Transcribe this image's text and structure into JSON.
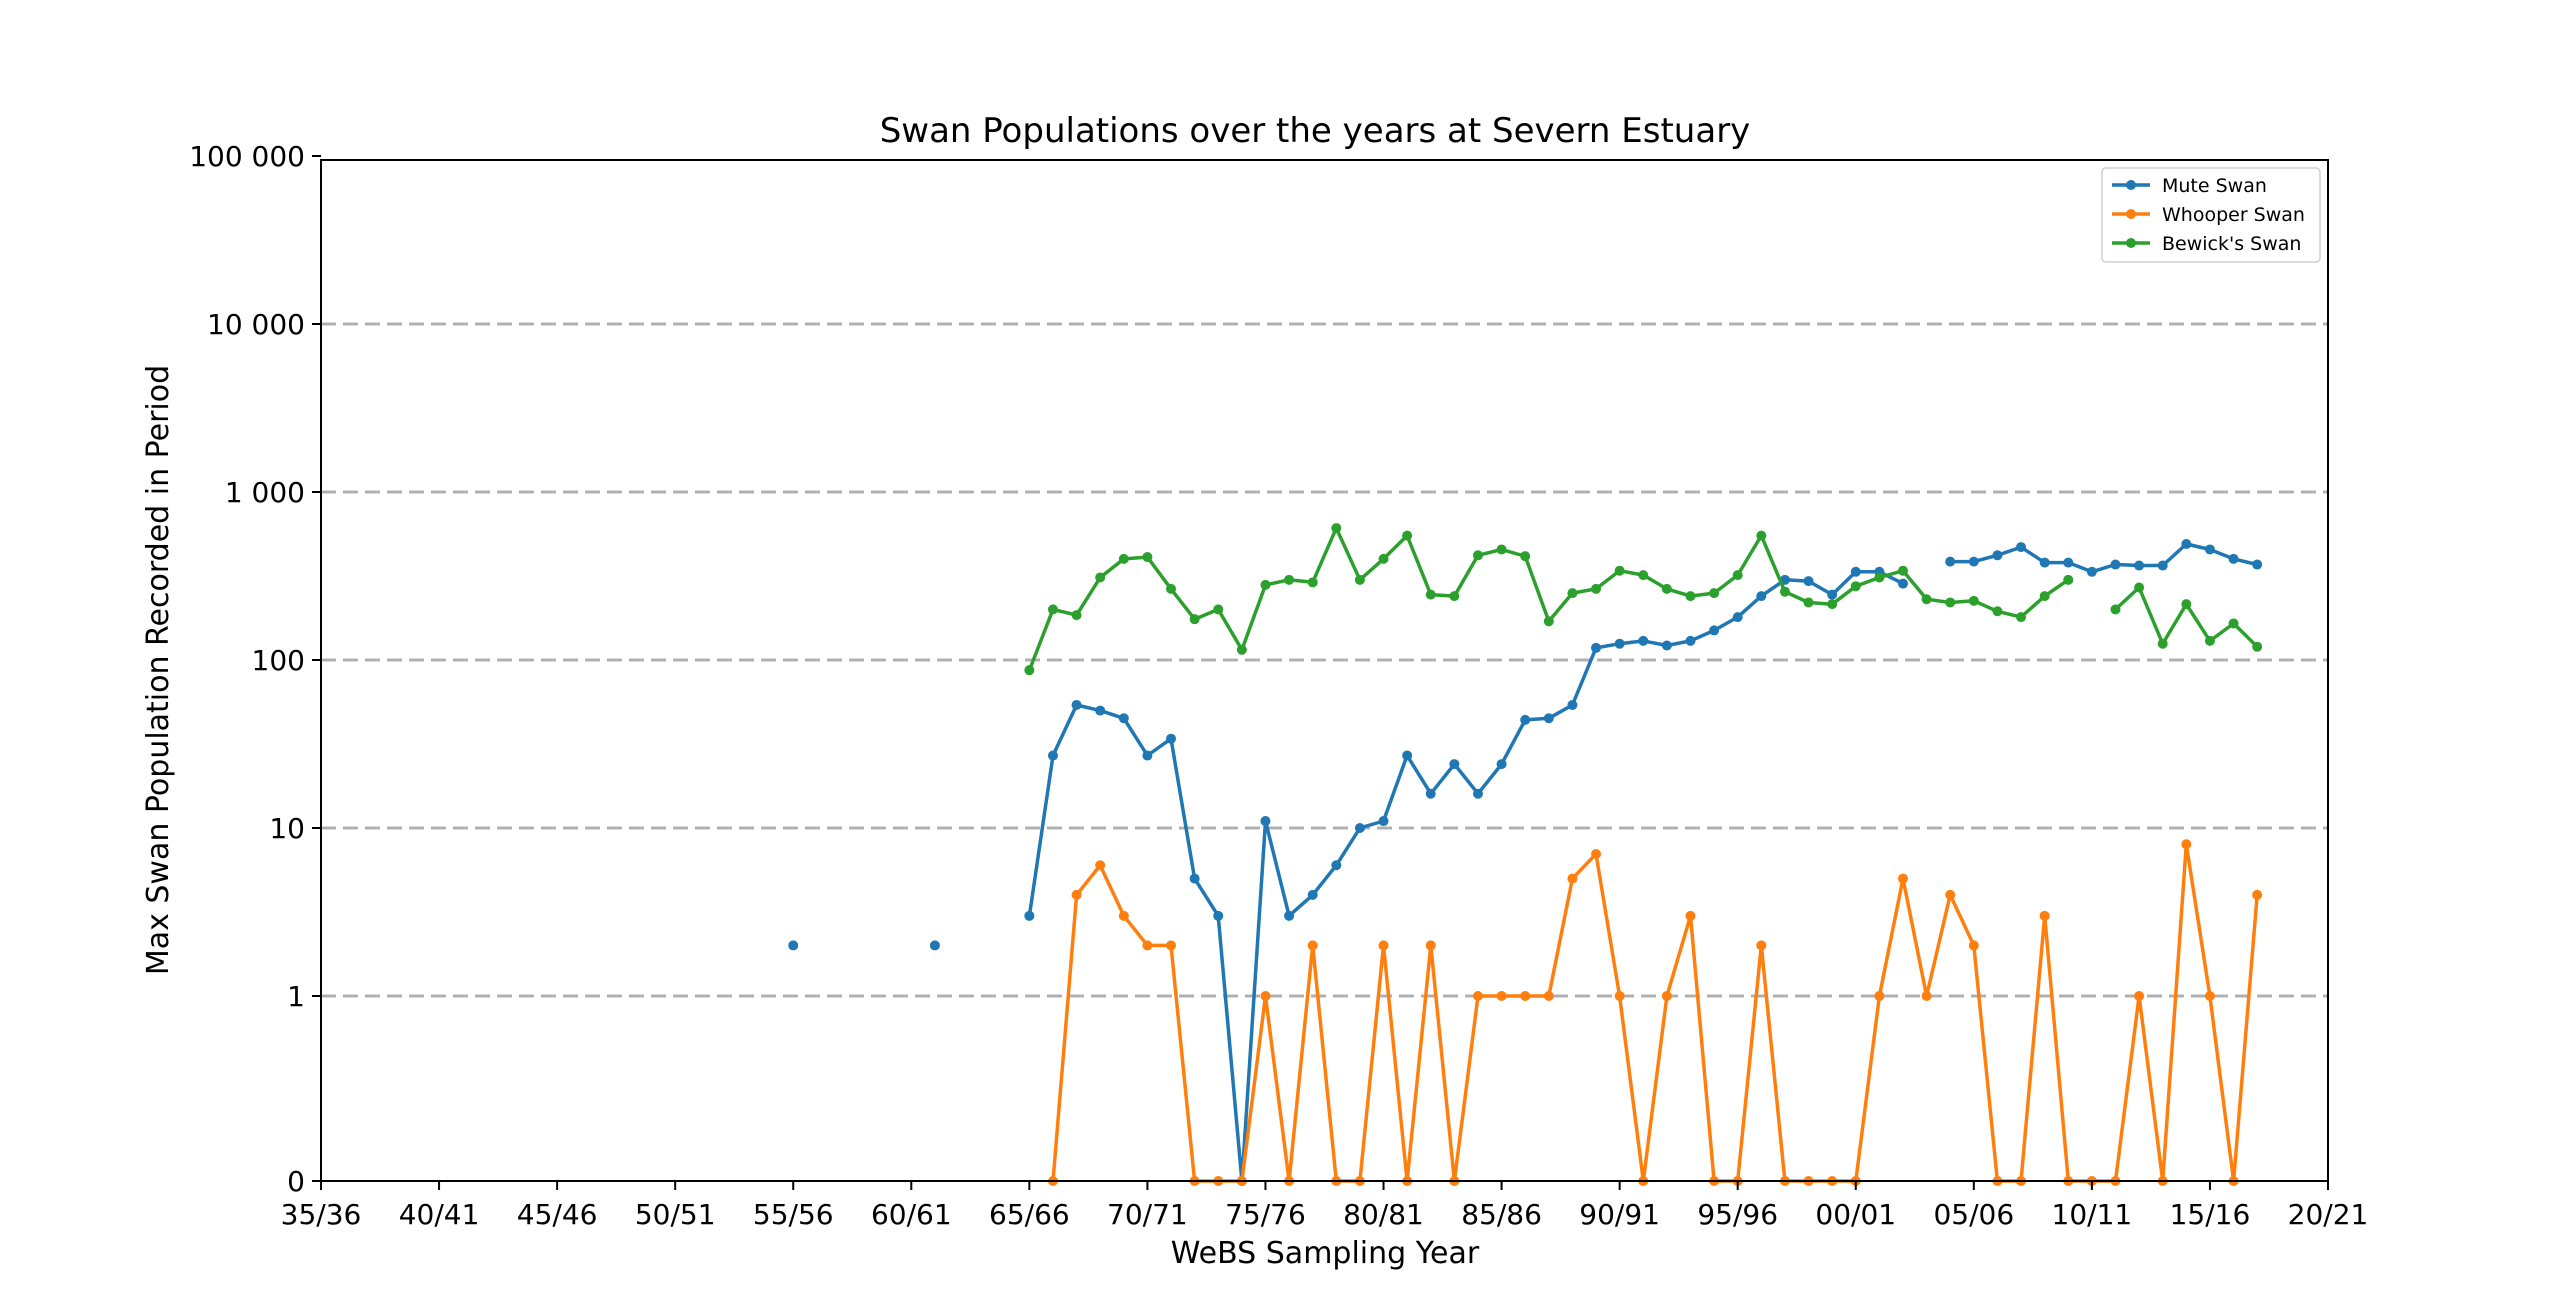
{
  "chart_data": {
    "type": "line",
    "title": "Swan Populations over the years at Severn Estuary",
    "xlabel": "WeBS Sampling Year",
    "ylabel": "Max Swan Population Recorded in Period",
    "y_scale": "symlog",
    "ylim": [
      0,
      100000
    ],
    "y_ticks": [
      0,
      1,
      10,
      100,
      1000,
      10000,
      100000
    ],
    "y_tick_labels": [
      "0",
      "1",
      "10",
      "100",
      "1 000",
      "10 000",
      "100 000"
    ],
    "x_ticks": [
      "35/36",
      "40/41",
      "45/46",
      "50/51",
      "55/56",
      "60/61",
      "65/66",
      "70/71",
      "75/76",
      "80/81",
      "85/86",
      "90/91",
      "95/96",
      "00/01",
      "05/06",
      "10/11",
      "15/16",
      "20/21"
    ],
    "x_range_start_years": [
      1935,
      2020
    ],
    "grid": "horizontal dashed",
    "legend_position": "top-right",
    "legend": [
      "Mute Swan",
      "Whooper Swan",
      "Bewick's Swan"
    ],
    "series": [
      {
        "name": "Mute Swan",
        "color": "#1f77b4",
        "points": [
          [
            "55/56",
            2
          ],
          [
            "61/62",
            2
          ],
          [
            "65/66",
            3
          ],
          [
            "66/67",
            27
          ],
          [
            "67/68",
            54
          ],
          [
            "68/69",
            50
          ],
          [
            "69/70",
            45
          ],
          [
            "70/71",
            27
          ],
          [
            "71/72",
            34
          ],
          [
            "72/73",
            5
          ],
          [
            "73/74",
            3
          ],
          [
            "74/75",
            0
          ],
          [
            "75/76",
            11
          ],
          [
            "76/77",
            3
          ],
          [
            "77/78",
            4
          ],
          [
            "78/79",
            6
          ],
          [
            "79/80",
            10
          ],
          [
            "80/81",
            11
          ],
          [
            "81/82",
            27
          ],
          [
            "82/83",
            16
          ],
          [
            "83/84",
            24
          ],
          [
            "84/85",
            16
          ],
          [
            "85/86",
            24
          ],
          [
            "86/87",
            44
          ],
          [
            "87/88",
            45
          ],
          [
            "88/89",
            54
          ],
          [
            "89/90",
            118
          ],
          [
            "90/91",
            125
          ],
          [
            "91/92",
            130
          ],
          [
            "92/93",
            122
          ],
          [
            "93/94",
            130
          ],
          [
            "94/95",
            150
          ],
          [
            "95/96",
            180
          ],
          [
            "96/97",
            240
          ],
          [
            "97/98",
            300
          ],
          [
            "98/99",
            295
          ],
          [
            "99/00",
            245
          ],
          [
            "00/01",
            335
          ],
          [
            "01/02",
            335
          ],
          [
            "02/03",
            285
          ],
          [
            "03/04",
            null
          ],
          [
            "04/05",
            385
          ],
          [
            "05/06",
            385
          ],
          [
            "06/07",
            420
          ],
          [
            "07/08",
            470
          ],
          [
            "08/09",
            380
          ],
          [
            "09/10",
            380
          ],
          [
            "10/11",
            335
          ],
          [
            "11/12",
            370
          ],
          [
            "12/13",
            365
          ],
          [
            "13/14",
            365
          ],
          [
            "14/15",
            490
          ],
          [
            "15/16",
            455
          ],
          [
            "16/17",
            400
          ],
          [
            "17/18",
            370
          ]
        ]
      },
      {
        "name": "Whooper Swan",
        "color": "#ff7f0e",
        "points": [
          [
            "66/67",
            0
          ],
          [
            "67/68",
            4
          ],
          [
            "68/69",
            6
          ],
          [
            "69/70",
            3
          ],
          [
            "70/71",
            2
          ],
          [
            "71/72",
            2
          ],
          [
            "72/73",
            0
          ],
          [
            "73/74",
            0
          ],
          [
            "74/75",
            0
          ],
          [
            "75/76",
            1
          ],
          [
            "76/77",
            0
          ],
          [
            "77/78",
            2
          ],
          [
            "78/79",
            0
          ],
          [
            "79/80",
            0
          ],
          [
            "80/81",
            2
          ],
          [
            "81/82",
            0
          ],
          [
            "82/83",
            2
          ],
          [
            "83/84",
            0
          ],
          [
            "84/85",
            1
          ],
          [
            "85/86",
            1
          ],
          [
            "86/87",
            1
          ],
          [
            "87/88",
            1
          ],
          [
            "88/89",
            5
          ],
          [
            "89/90",
            7
          ],
          [
            "90/91",
            1
          ],
          [
            "91/92",
            0
          ],
          [
            "92/93",
            1
          ],
          [
            "93/94",
            3
          ],
          [
            "94/95",
            0
          ],
          [
            "95/96",
            0
          ],
          [
            "96/97",
            2
          ],
          [
            "97/98",
            0
          ],
          [
            "98/99",
            0
          ],
          [
            "99/00",
            0
          ],
          [
            "00/01",
            0
          ],
          [
            "01/02",
            1
          ],
          [
            "02/03",
            5
          ],
          [
            "03/04",
            1
          ],
          [
            "04/05",
            4
          ],
          [
            "05/06",
            2
          ],
          [
            "06/07",
            0
          ],
          [
            "07/08",
            0
          ],
          [
            "08/09",
            3
          ],
          [
            "09/10",
            0
          ],
          [
            "10/11",
            0
          ],
          [
            "11/12",
            0
          ],
          [
            "12/13",
            1
          ],
          [
            "13/14",
            0
          ],
          [
            "14/15",
            8
          ],
          [
            "15/16",
            1
          ],
          [
            "16/17",
            0
          ],
          [
            "17/18",
            4
          ]
        ]
      },
      {
        "name": "Bewick's Swan",
        "color": "#2ca02c",
        "points": [
          [
            "65/66",
            87
          ],
          [
            "66/67",
            200
          ],
          [
            "67/68",
            185
          ],
          [
            "68/69",
            310
          ],
          [
            "69/70",
            400
          ],
          [
            "70/71",
            410
          ],
          [
            "71/72",
            265
          ],
          [
            "72/73",
            175
          ],
          [
            "73/74",
            200
          ],
          [
            "74/75",
            115
          ],
          [
            "75/76",
            280
          ],
          [
            "76/77",
            300
          ],
          [
            "77/78",
            290
          ],
          [
            "78/79",
            610
          ],
          [
            "79/80",
            300
          ],
          [
            "80/81",
            400
          ],
          [
            "81/82",
            550
          ],
          [
            "82/83",
            245
          ],
          [
            "83/84",
            240
          ],
          [
            "84/85",
            420
          ],
          [
            "85/86",
            455
          ],
          [
            "86/87",
            415
          ],
          [
            "87/88",
            170
          ],
          [
            "88/89",
            250
          ],
          [
            "89/90",
            265
          ],
          [
            "90/91",
            340
          ],
          [
            "91/92",
            320
          ],
          [
            "92/93",
            265
          ],
          [
            "93/94",
            240
          ],
          [
            "94/95",
            250
          ],
          [
            "95/96",
            320
          ],
          [
            "96/97",
            550
          ],
          [
            "97/98",
            255
          ],
          [
            "98/99",
            220
          ],
          [
            "99/00",
            215
          ],
          [
            "00/01",
            275
          ],
          [
            "01/02",
            310
          ],
          [
            "02/03",
            340
          ],
          [
            "03/04",
            230
          ],
          [
            "04/05",
            220
          ],
          [
            "05/06",
            225
          ],
          [
            "06/07",
            195
          ],
          [
            "07/08",
            180
          ],
          [
            "08/09",
            240
          ],
          [
            "09/10",
            300
          ],
          [
            "10/11",
            null
          ],
          [
            "11/12",
            200
          ],
          [
            "12/13",
            270
          ],
          [
            "13/14",
            125
          ],
          [
            "14/15",
            215
          ],
          [
            "15/16",
            130
          ],
          [
            "16/17",
            165
          ],
          [
            "17/18",
            120
          ]
        ]
      }
    ]
  }
}
